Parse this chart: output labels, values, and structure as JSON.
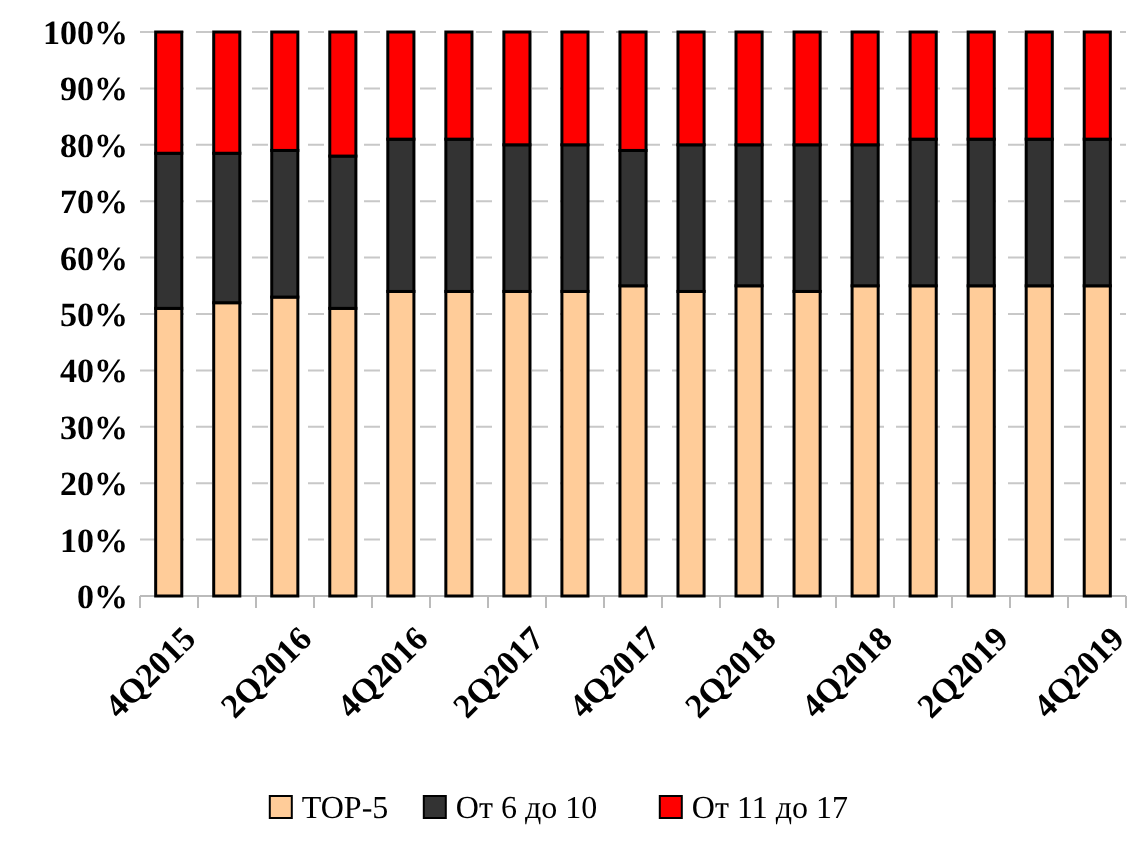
{
  "chart_data": {
    "type": "bar",
    "stacked": true,
    "categories": [
      "4Q2015",
      null,
      "2Q2016",
      null,
      "4Q2016",
      null,
      "2Q2017",
      null,
      "4Q2017",
      null,
      "2Q2018",
      null,
      "4Q2018",
      null,
      "2Q2019",
      null,
      "4Q2019"
    ],
    "series": [
      {
        "name": "TOP-5",
        "color": "#ffcc99",
        "values": [
          51,
          52,
          53,
          51,
          54,
          54,
          54,
          54,
          55,
          54,
          55,
          54,
          55,
          55,
          55,
          55,
          55
        ]
      },
      {
        "name": "От 6 до 10",
        "color": "#333333",
        "values": [
          27.5,
          26.5,
          26,
          27,
          27,
          27,
          26,
          26,
          24,
          26,
          25,
          26,
          25,
          26,
          26,
          26,
          26
        ]
      },
      {
        "name": "От 11 до 17",
        "color": "#ff0000",
        "values": [
          21.5,
          21.5,
          21,
          22,
          19,
          19,
          20,
          20,
          21,
          20,
          20,
          20,
          20,
          19,
          19,
          19,
          19
        ]
      }
    ],
    "ylim": [
      0,
      100
    ],
    "yticks": [
      {
        "value": 0,
        "label": "0%"
      },
      {
        "value": 10,
        "label": "10%"
      },
      {
        "value": 20,
        "label": "20%"
      },
      {
        "value": 30,
        "label": "30%"
      },
      {
        "value": 40,
        "label": "40%"
      },
      {
        "value": 50,
        "label": "50%"
      },
      {
        "value": 60,
        "label": "60%"
      },
      {
        "value": 70,
        "label": "70%"
      },
      {
        "value": 80,
        "label": "80%"
      },
      {
        "value": 90,
        "label": "90%"
      },
      {
        "value": 100,
        "label": "100%"
      }
    ],
    "grid": "y",
    "legend": "bottom"
  }
}
